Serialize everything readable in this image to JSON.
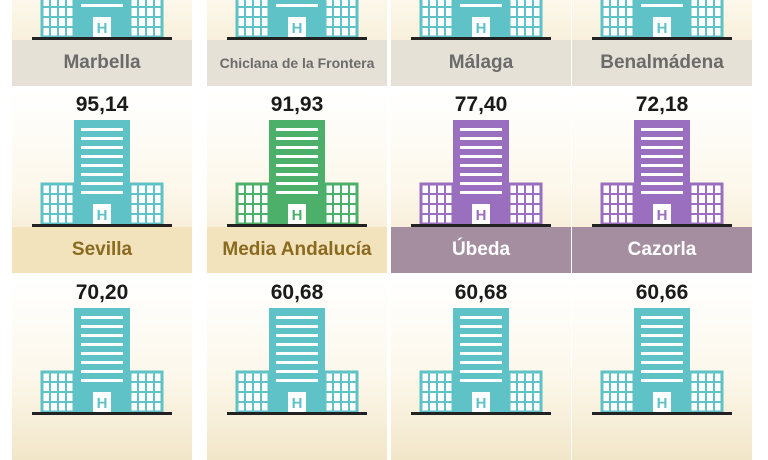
{
  "chart_data": {
    "type": "pictograph",
    "colors": {
      "building_default": "#5ec2c6",
      "building_average": "#4caf6a",
      "building_highlight": "#9a6fbf",
      "label_bg_default": "#e6e1d6",
      "label_bg_tan": "#f2e3bd",
      "label_bg_highlight": "#a58ea0",
      "label_text_default": "#6b6b6b",
      "label_text_tan": "#8a6a1f",
      "label_text_highlight": "#ffffff"
    },
    "items": [
      {
        "name": "Marbella",
        "value": null,
        "style": "default"
      },
      {
        "name": "Chiclana de la Frontera",
        "value": null,
        "style": "default"
      },
      {
        "name": "Málaga",
        "value": null,
        "style": "default"
      },
      {
        "name": "Benalmádena",
        "value": null,
        "style": "default"
      },
      {
        "name": "Sevilla",
        "value": "95,14",
        "style": "tan"
      },
      {
        "name": "Media Andalucía",
        "value": "91,93",
        "style": "average"
      },
      {
        "name": "Úbeda",
        "value": "77,40",
        "style": "highlight"
      },
      {
        "name": "Cazorla",
        "value": "72,18",
        "style": "highlight"
      },
      {
        "name": "",
        "value": "70,20",
        "style": "default"
      },
      {
        "name": "",
        "value": "60,68",
        "style": "default"
      },
      {
        "name": "",
        "value": "60,68",
        "style": "default"
      },
      {
        "name": "",
        "value": "60,66",
        "style": "default"
      }
    ]
  }
}
